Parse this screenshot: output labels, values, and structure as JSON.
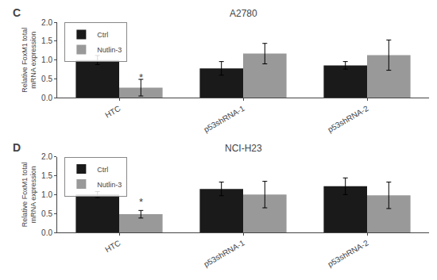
{
  "chart_data": [
    {
      "type": "bar",
      "title": "A2780",
      "ylabel": "Relative FoxM1 total\nmRNA expression",
      "categories": [
        "HTC",
        "p53shRNA-1",
        "p53shRNA-2"
      ],
      "series": [
        {
          "name": "Ctrl",
          "color": "#1a1a1a",
          "values": [
            1.0,
            0.78,
            0.86
          ],
          "errors": [
            0.12,
            0.18,
            0.1
          ]
        },
        {
          "name": "Nutlin-3",
          "color": "#999999",
          "values": [
            0.27,
            1.17,
            1.13
          ],
          "errors": [
            0.22,
            0.27,
            0.4
          ]
        }
      ],
      "ylim": [
        0,
        2.0
      ],
      "yticks": [
        0.0,
        0.5,
        1.0,
        1.5,
        2.0
      ],
      "grid": false,
      "legend": "upper left",
      "annotations": [
        {
          "text": "C"
        },
        {
          "text": "*",
          "x": "HTC",
          "series": "Nutlin-3",
          "y": 0.35
        }
      ]
    },
    {
      "type": "bar",
      "title": "NCI-H23",
      "ylabel": "Relative FoxM1 total\nmRNA expression",
      "categories": [
        "HTC",
        "p53shRNA-1",
        "p53shRNA-2"
      ],
      "series": [
        {
          "name": "Ctrl",
          "color": "#1a1a1a",
          "values": [
            1.0,
            1.15,
            1.22
          ],
          "errors": [
            0.08,
            0.18,
            0.22
          ]
        },
        {
          "name": "Nutlin-3",
          "color": "#999999",
          "values": [
            0.48,
            1.0,
            0.98
          ],
          "errors": [
            0.1,
            0.35,
            0.35
          ]
        }
      ],
      "ylim": [
        0,
        2.0
      ],
      "yticks": [
        0.0,
        0.5,
        1.0,
        1.5,
        2.0
      ],
      "grid": false,
      "legend": "upper left",
      "annotations": [
        {
          "text": "D"
        },
        {
          "text": "*",
          "x": "HTC",
          "series": "Nutlin-3",
          "y": 0.6
        }
      ]
    }
  ]
}
